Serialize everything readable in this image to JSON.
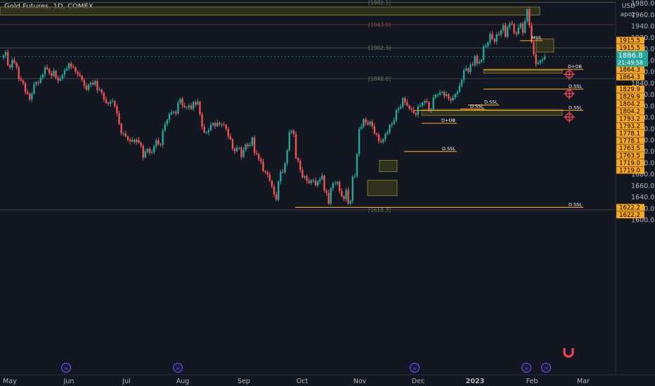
{
  "header": {
    "title": "Gold Futures, 1D, COMEX",
    "currency": "USD",
    "user": "apoz"
  },
  "price_tag": {
    "value": "1886.8",
    "countdown": "21:49:58",
    "color": "#26a69a"
  },
  "colors": {
    "up": "#26a69a",
    "down": "#ef5350",
    "level": "#f5a623",
    "zone_fill": "#3b3a1e",
    "zone_stroke": "#8c8a2e",
    "grid_text": "#787b86",
    "target_icon": "#e04050",
    "magnet_icon": "#e04050",
    "event_icon": "#7b4fff"
  },
  "chart_data": {
    "type": "candlestick",
    "symbol": "Gold Futures",
    "interval": "1D",
    "exchange": "COMEX",
    "y_ticks": [
      1600,
      1620,
      1640,
      1660,
      1680,
      1700,
      1720,
      1740,
      1760,
      1780,
      1800,
      1820,
      1840,
      1860,
      1880,
      1900,
      1920,
      1940,
      1960,
      1980
    ],
    "y_tick_labels": [
      "1600.0",
      "1620.0",
      "1640.0",
      "1660.0",
      "1680.0",
      "1700.0",
      "1720.0",
      "1740.0",
      "1760.0",
      "1780.0",
      "1800.0",
      "1820.0",
      "1840.0",
      "1860.0",
      "1880.0",
      "1900.0",
      "1920.0",
      "1940.0",
      "1960.0",
      "1980.0"
    ],
    "ylim": [
      1592,
      2000
    ],
    "x_ticks": [
      "May",
      "Jun",
      "Jul",
      "Aug",
      "Sep",
      "Oct",
      "Nov",
      "Dec",
      "2023",
      "Feb",
      "Mar"
    ],
    "closes": [
      1889,
      1895,
      1872,
      1868,
      1881,
      1876,
      1868,
      1848,
      1845,
      1840,
      1825,
      1822,
      1812,
      1822,
      1838,
      1842,
      1841,
      1850,
      1856,
      1868,
      1865,
      1858,
      1853,
      1862,
      1850,
      1845,
      1848,
      1855,
      1863,
      1866,
      1875,
      1869,
      1868,
      1860,
      1856,
      1853,
      1846,
      1836,
      1829,
      1838,
      1841,
      1838,
      1844,
      1828,
      1829,
      1823,
      1812,
      1806,
      1804,
      1808,
      1809,
      1800,
      1787,
      1769,
      1752,
      1752,
      1747,
      1741,
      1738,
      1741,
      1737,
      1741,
      1736,
      1730,
      1710,
      1720,
      1725,
      1718,
      1719,
      1730,
      1740,
      1733,
      1732,
      1757,
      1768,
      1776,
      1786,
      1789,
      1790,
      1787,
      1806,
      1813,
      1801,
      1798,
      1798,
      1801,
      1795,
      1807,
      1803,
      1808,
      1786,
      1764,
      1754,
      1754,
      1758,
      1767,
      1770,
      1765,
      1771,
      1768,
      1768,
      1767,
      1760,
      1747,
      1742,
      1725,
      1721,
      1727,
      1727,
      1711,
      1723,
      1733,
      1730,
      1732,
      1745,
      1718,
      1716,
      1707,
      1703,
      1686,
      1684,
      1680,
      1669,
      1659,
      1645,
      1636,
      1668,
      1685,
      1684,
      1700,
      1722,
      1754,
      1757,
      1751,
      1709,
      1704,
      1688,
      1675,
      1677,
      1669,
      1665,
      1670,
      1670,
      1661,
      1668,
      1672,
      1678,
      1652,
      1648,
      1629,
      1656,
      1664,
      1664,
      1667,
      1651,
      1642,
      1637,
      1653,
      1629,
      1634,
      1676,
      1677,
      1716,
      1760,
      1764,
      1777,
      1771,
      1768,
      1773,
      1765,
      1752,
      1750,
      1739,
      1737,
      1742,
      1751,
      1754,
      1767,
      1769,
      1775,
      1793,
      1796,
      1799,
      1814,
      1807,
      1801,
      1796,
      1794,
      1788,
      1785,
      1800,
      1801,
      1806,
      1809,
      1807,
      1793,
      1794,
      1815,
      1820,
      1820,
      1824,
      1825,
      1818,
      1821,
      1813,
      1810,
      1815,
      1821,
      1825,
      1836,
      1846,
      1863,
      1866,
      1860,
      1873,
      1872,
      1888,
      1875,
      1878,
      1881,
      1905,
      1905,
      1912,
      1927,
      1918,
      1913,
      1926,
      1925,
      1933,
      1942,
      1922,
      1939,
      1945,
      1944,
      1929,
      1927,
      1938,
      1945,
      1929,
      1949,
      1970,
      1942,
      1912,
      1891,
      1874,
      1876,
      1880,
      1882,
      1886.8
    ],
    "key_levels": [
      {
        "label": "[1982.1]",
        "price": 1982.1
      },
      {
        "label": "[1943.0]",
        "price": 1943.0
      },
      {
        "label": "[1902.3]",
        "price": 1902.3
      },
      {
        "label": "[1848.6]",
        "price": 1848.6
      },
      {
        "label": "[1618.3]",
        "price": 1618.3
      }
    ],
    "annotations": [
      {
        "text": "D+OB",
        "price": 1864.5,
        "from": "mid-Jan",
        "to": "Feb"
      },
      {
        "text": "D.SSL",
        "price": 1830,
        "from": "mid-Jan",
        "to": "Feb"
      },
      {
        "text": "D.SSL",
        "price": 1802,
        "from": "late Dec",
        "to": "early Jan"
      },
      {
        "text": "D.SSL",
        "price": 1795,
        "from": "late Dec",
        "to": "early Jan"
      },
      {
        "text": "D.SSL",
        "price": 1792.5,
        "from": "mid-Dec",
        "to": "Feb"
      },
      {
        "text": "D+OB",
        "price": 1770,
        "from": "mid-Dec",
        "to": "early Jan"
      },
      {
        "text": "D.SSL",
        "price": 1720.5,
        "from": "late Nov",
        "to": "early Jan"
      },
      {
        "text": "D.SSL",
        "price": 1622.5,
        "from": "late Sep",
        "to": "Feb"
      },
      {
        "text": "MSS",
        "price": 1915,
        "from": "late Jan",
        "to": "Feb"
      }
    ],
    "zones": [
      {
        "top": 1974,
        "bottom": 1960
      },
      {
        "top": 1918,
        "bottom": 1895
      },
      {
        "top": 1863,
        "bottom": 1858
      },
      {
        "top": 1794,
        "bottom": 1784
      },
      {
        "top": 1705,
        "bottom": 1685
      },
      {
        "top": 1670,
        "bottom": 1643
      }
    ],
    "price_labels": [
      "1915.5",
      "1915.5",
      "1864.3",
      "1864.3",
      "1829.9",
      "1829.9",
      "1804.2",
      "1804.2",
      "1793.2",
      "1793.2",
      "1778.1",
      "1778.1",
      "1763.5",
      "1763.5",
      "1719.0",
      "1719.0",
      "1622.2",
      "1622.2"
    ],
    "price_label_values": [
      1915.5,
      1915.5,
      1864.3,
      1864.3,
      1829.9,
      1829.9,
      1804.2,
      1804.2,
      1793.2,
      1793.2,
      1778.1,
      1778.1,
      1763.5,
      1763.5,
      1719.0,
      1719.0,
      1622.2,
      1622.2
    ]
  }
}
